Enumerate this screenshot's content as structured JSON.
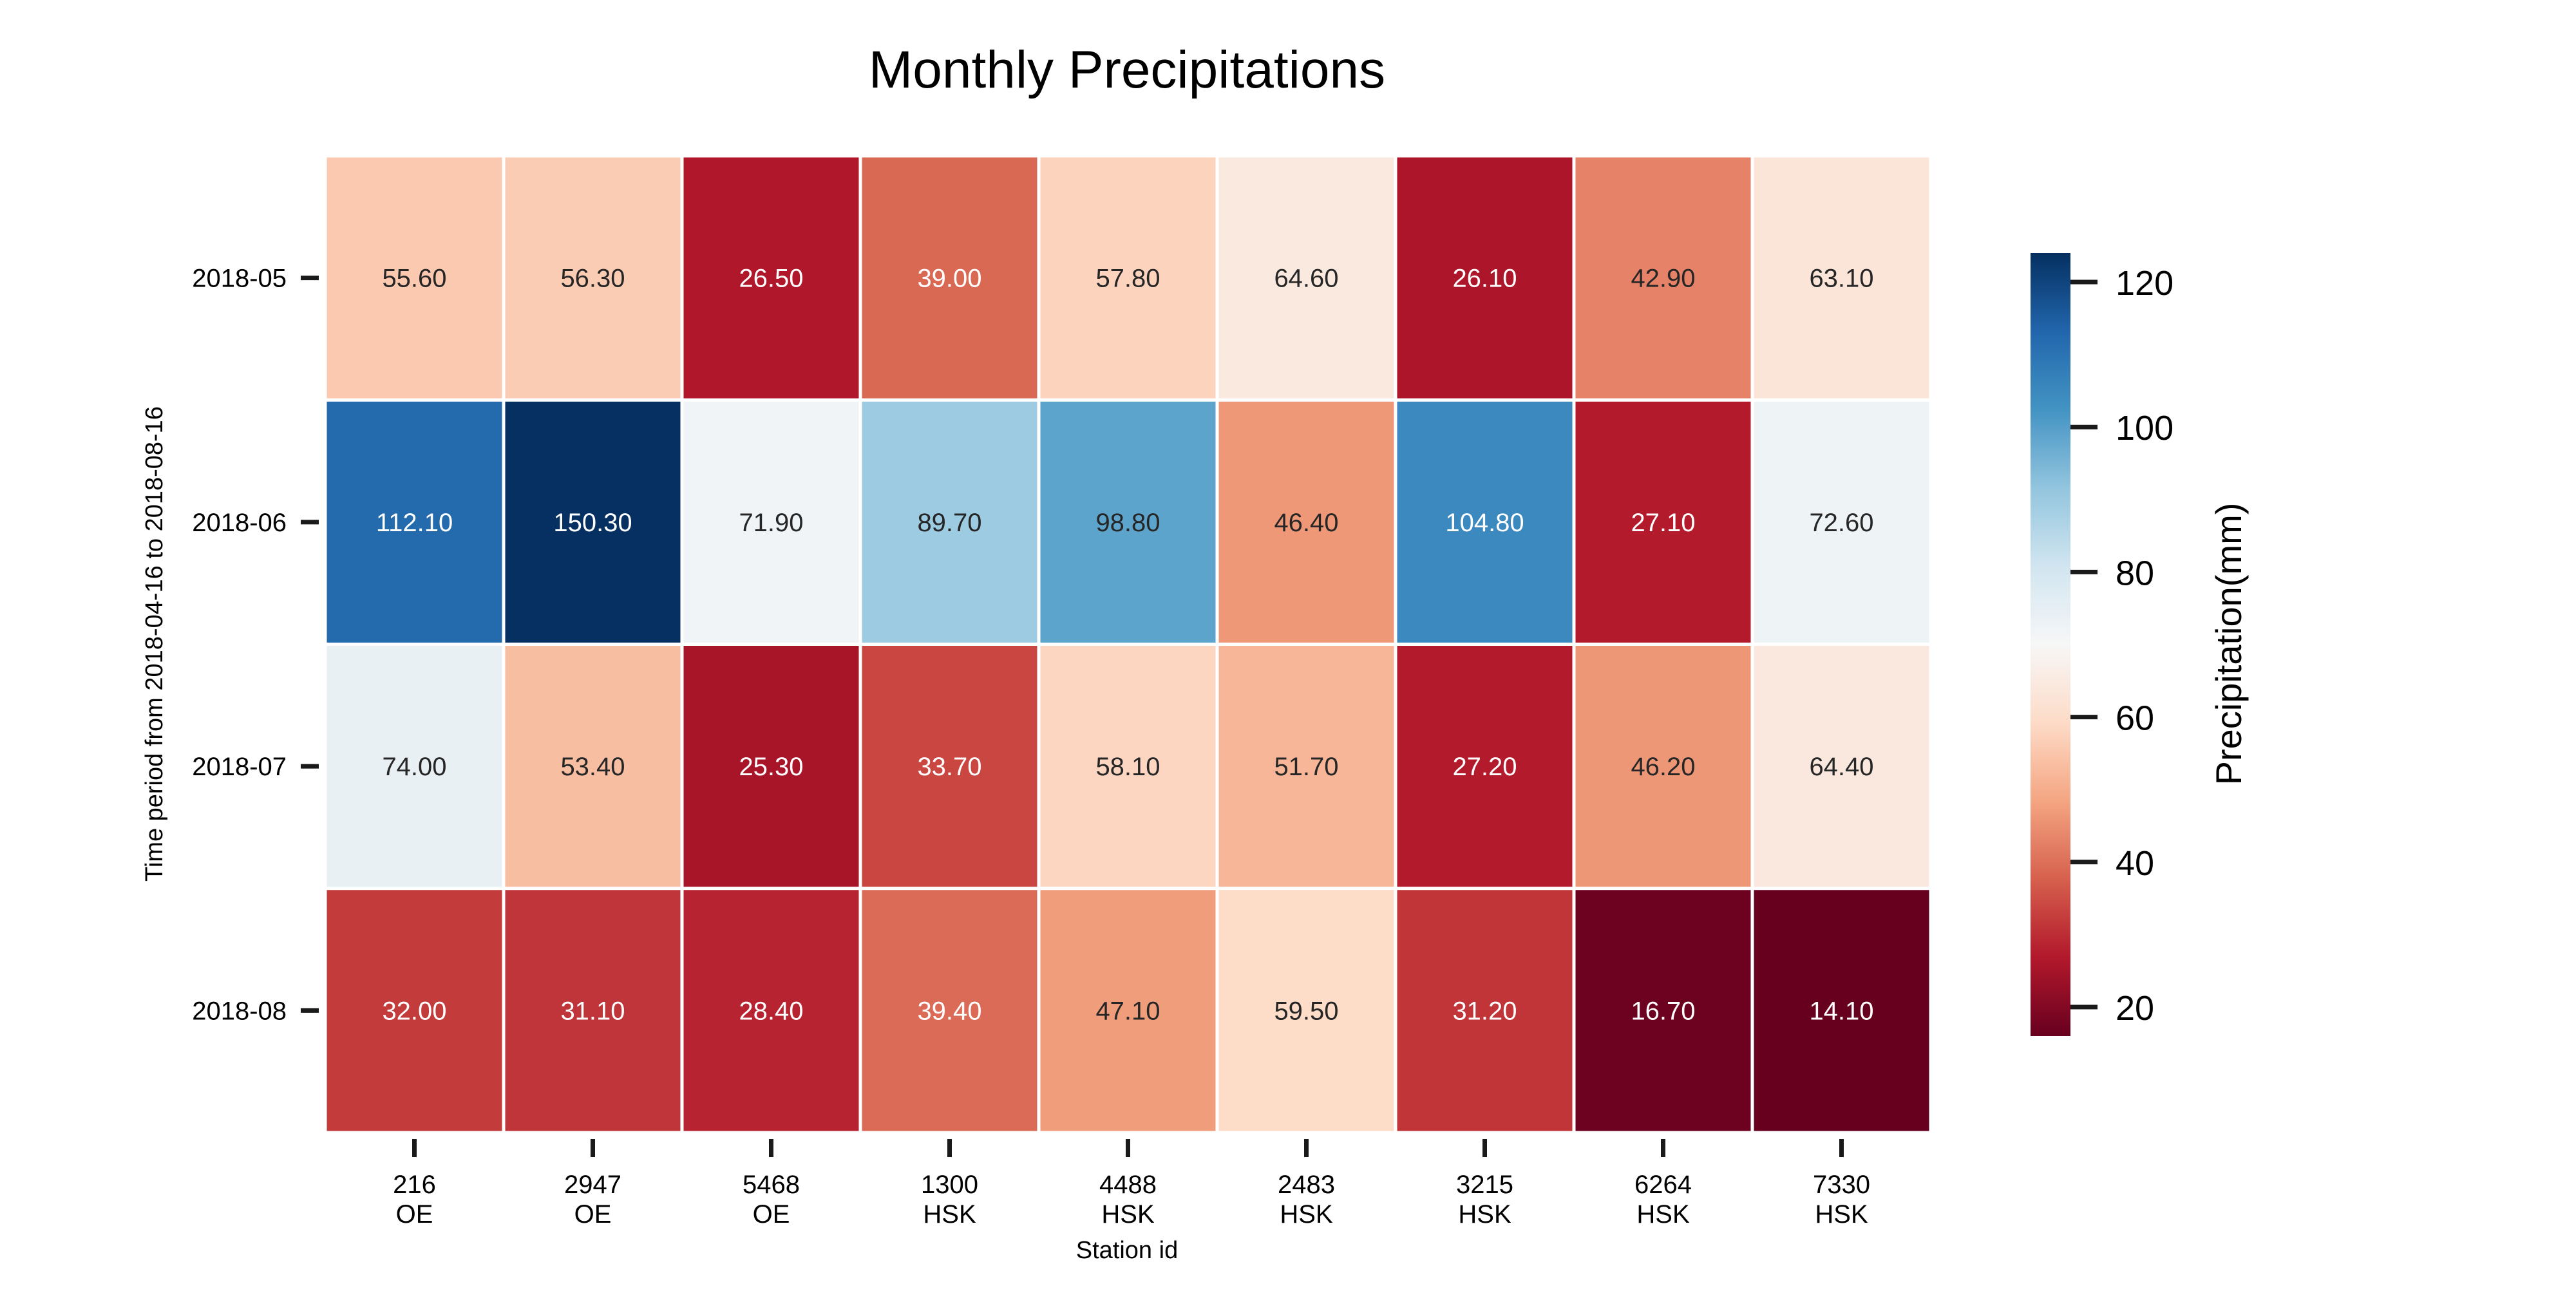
{
  "chart_data": {
    "type": "heatmap",
    "title": "Monthly Precipitations",
    "xlabel": "Station id",
    "ylabel": "Time period from 2018-04-16 to 2018-08-16",
    "x_categories": [
      {
        "id": "216",
        "group": "OE"
      },
      {
        "id": "2947",
        "group": "OE"
      },
      {
        "id": "5468",
        "group": "OE"
      },
      {
        "id": "1300",
        "group": "HSK"
      },
      {
        "id": "4488",
        "group": "HSK"
      },
      {
        "id": "2483",
        "group": "HSK"
      },
      {
        "id": "3215",
        "group": "HSK"
      },
      {
        "id": "6264",
        "group": "HSK"
      },
      {
        "id": "7330",
        "group": "HSK"
      }
    ],
    "y_categories": [
      "2018-05",
      "2018-06",
      "2018-07",
      "2018-08"
    ],
    "values": [
      [
        55.6,
        56.3,
        26.5,
        39.0,
        57.8,
        64.6,
        26.1,
        42.9,
        63.1
      ],
      [
        112.1,
        150.3,
        71.9,
        89.7,
        98.8,
        46.4,
        104.8,
        27.1,
        72.6
      ],
      [
        74.0,
        53.4,
        25.3,
        33.7,
        58.1,
        51.7,
        27.2,
        46.2,
        64.4
      ],
      [
        32.0,
        31.1,
        28.4,
        39.4,
        47.1,
        59.5,
        31.2,
        16.7,
        14.1
      ]
    ],
    "value_format_decimals": 2,
    "colormap": "RdBu",
    "vmin": 16,
    "vmax": 124,
    "grid_lines": "white",
    "colorbar": {
      "label": "Precipitation(mm)",
      "ticks": [
        20,
        40,
        60,
        80,
        100,
        120
      ],
      "placement": "right"
    }
  }
}
